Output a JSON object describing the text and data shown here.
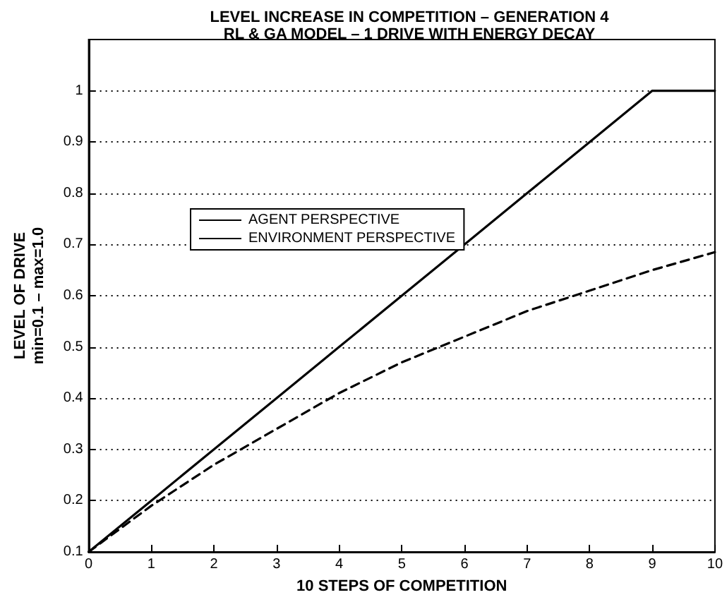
{
  "chart_data": {
    "type": "line",
    "title": "LEVEL INCREASE IN COMPETITION – GENERATION 4",
    "subtitle": "RL & GA MODEL – 1 DRIVE WITH ENERGY DECAY",
    "xlabel": "10 STEPS OF COMPETITION",
    "ylabel": "LEVEL OF DRIVE\nmin=0.1 – max=1.0",
    "x": [
      0,
      1,
      2,
      3,
      4,
      5,
      6,
      7,
      8,
      9,
      10
    ],
    "series": [
      {
        "name": "AGENT PERSPECTIVE",
        "color": "#000000",
        "line_style": "solid",
        "values": [
          0.1,
          0.2,
          0.3,
          0.4,
          0.5,
          0.6,
          0.7,
          0.8,
          0.9,
          1.0,
          1.0
        ]
      },
      {
        "name": "ENVIRONMENT PERSPECTIVE",
        "color": "#000000",
        "line_style": "dashed",
        "values": [
          0.1,
          0.19,
          0.27,
          0.34,
          0.41,
          0.47,
          0.52,
          0.57,
          0.61,
          0.65,
          0.685
        ]
      }
    ],
    "xlim": [
      0,
      10
    ],
    "xticks": [
      0,
      1,
      2,
      3,
      4,
      5,
      6,
      7,
      8,
      9,
      10
    ],
    "ylim": [
      0.1,
      1.1
    ],
    "yticks": [
      0.1,
      0.2,
      0.3,
      0.4,
      0.5,
      0.6,
      0.7,
      0.8,
      0.9,
      1
    ],
    "grid": "y",
    "legend": "left",
    "marker": "none"
  }
}
